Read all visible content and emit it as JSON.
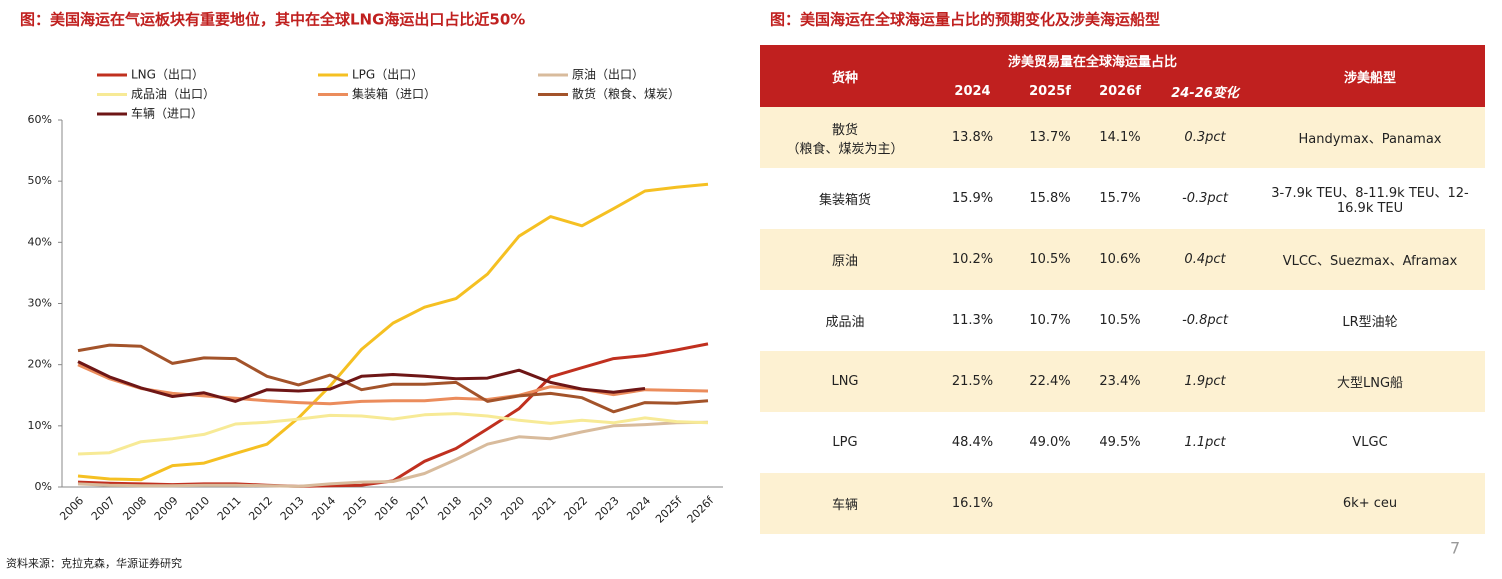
{
  "chart_data": {
    "type": "line",
    "title": "图：美国海运在气运板块有重要地位，其中在全球LNG海运出口占比近50%",
    "categories": [
      "2006",
      "2007",
      "2008",
      "2009",
      "2010",
      "2011",
      "2012",
      "2013",
      "2014",
      "2015",
      "2016",
      "2017",
      "2018",
      "2019",
      "2020",
      "2021",
      "2022",
      "2023",
      "2024",
      "2025f",
      "2026f"
    ],
    "series": [
      {
        "name": "LNG（出口）",
        "color": "#c0301f",
        "values": [
          0.8,
          0.6,
          0.5,
          0.4,
          0.5,
          0.5,
          0.3,
          0.1,
          0.2,
          0.3,
          1.0,
          4.2,
          6.3,
          9.5,
          12.8,
          18.0,
          19.5,
          21.0,
          21.5,
          22.4,
          23.4
        ]
      },
      {
        "name": "LPG（出口）",
        "color": "#f5c022",
        "values": [
          1.8,
          1.3,
          1.2,
          3.5,
          3.9,
          5.5,
          7.0,
          11.3,
          16.5,
          22.5,
          26.8,
          29.4,
          30.8,
          34.8,
          41.0,
          44.2,
          42.7,
          45.5,
          48.4,
          49.0,
          49.5
        ]
      },
      {
        "name": "原油（出口）",
        "color": "#d8bb9c",
        "values": [
          0.5,
          0.3,
          0.2,
          0.2,
          0.3,
          0.3,
          0.2,
          0.1,
          0.5,
          0.8,
          0.9,
          2.2,
          4.5,
          7.0,
          8.2,
          7.9,
          9.0,
          10.0,
          10.2,
          10.5,
          10.6
        ]
      },
      {
        "name": "成品油（出口）",
        "color": "#f7ea96",
        "values": [
          5.4,
          5.6,
          7.4,
          7.9,
          8.6,
          10.3,
          10.6,
          11.1,
          11.7,
          11.6,
          11.1,
          11.8,
          12.0,
          11.6,
          10.9,
          10.4,
          10.9,
          10.5,
          11.3,
          10.7,
          10.5
        ]
      },
      {
        "name": "集装箱（进口）",
        "color": "#eb8c5c",
        "values": [
          20.0,
          17.7,
          16.1,
          15.3,
          14.9,
          14.5,
          14.1,
          13.8,
          13.6,
          14.0,
          14.1,
          14.1,
          14.5,
          14.3,
          15.0,
          16.4,
          16.0,
          15.1,
          15.9,
          15.8,
          15.7
        ]
      },
      {
        "name": "散货（粮食、煤炭）",
        "color": "#a3532a",
        "values": [
          22.3,
          23.2,
          23.0,
          20.2,
          21.1,
          21.0,
          18.1,
          16.7,
          18.3,
          15.9,
          16.8,
          16.8,
          17.1,
          14.0,
          14.9,
          15.3,
          14.6,
          12.3,
          13.8,
          13.7,
          14.1
        ]
      },
      {
        "name": "车辆（进口）",
        "color": "#6e1616",
        "values": [
          20.5,
          18.0,
          16.2,
          14.8,
          15.4,
          14.0,
          15.9,
          15.7,
          16.0,
          18.1,
          18.4,
          18.1,
          17.7,
          17.8,
          19.1,
          17.1,
          16.0,
          15.5,
          16.1,
          null,
          null
        ]
      }
    ],
    "ylim": [
      0,
      60
    ],
    "yticks": [
      {
        "value": 0,
        "label": "0%"
      },
      {
        "value": 10,
        "label": "10%"
      },
      {
        "value": 20,
        "label": "20%"
      },
      {
        "value": 30,
        "label": "30%"
      },
      {
        "value": 40,
        "label": "40%"
      },
      {
        "value": 50,
        "label": "50%"
      },
      {
        "value": 60,
        "label": "60%"
      }
    ],
    "grid": false
  },
  "table_title": "图：美国海运在全球海运量占比的预期变化及涉美海运船型",
  "table": {
    "header": [
      "货种",
      "涉美贸易量在全球海运量占比",
      "涉美船型"
    ],
    "subheader": [
      "2024",
      "2025f",
      "2026f",
      "24-26变化"
    ],
    "rows": [
      [
        "散货\n（粮食、煤炭为主）",
        "13.8%",
        "13.7%",
        "14.1%",
        "0.3pct",
        "Handymax、Panamax"
      ],
      [
        "集装箱货",
        "15.9%",
        "15.8%",
        "15.7%",
        "-0.3pct",
        "3-7.9k TEU、8-11.9k TEU、12-16.9k TEU"
      ],
      [
        "原油",
        "10.2%",
        "10.5%",
        "10.6%",
        "0.4pct",
        "VLCC、Suezmax、Aframax"
      ],
      [
        "成品油",
        "11.3%",
        "10.7%",
        "10.5%",
        "-0.8pct",
        "LR型油轮"
      ],
      [
        "LNG",
        "21.5%",
        "22.4%",
        "23.4%",
        "1.9pct",
        "大型LNG船"
      ],
      [
        "LPG",
        "48.4%",
        "49.0%",
        "49.5%",
        "1.1pct",
        "VLGC"
      ],
      [
        "车辆",
        "16.1%",
        null,
        null,
        null,
        "6k+ ceu"
      ]
    ]
  },
  "source": "资料来源：克拉克森，华源证券研究",
  "page_number": "7"
}
